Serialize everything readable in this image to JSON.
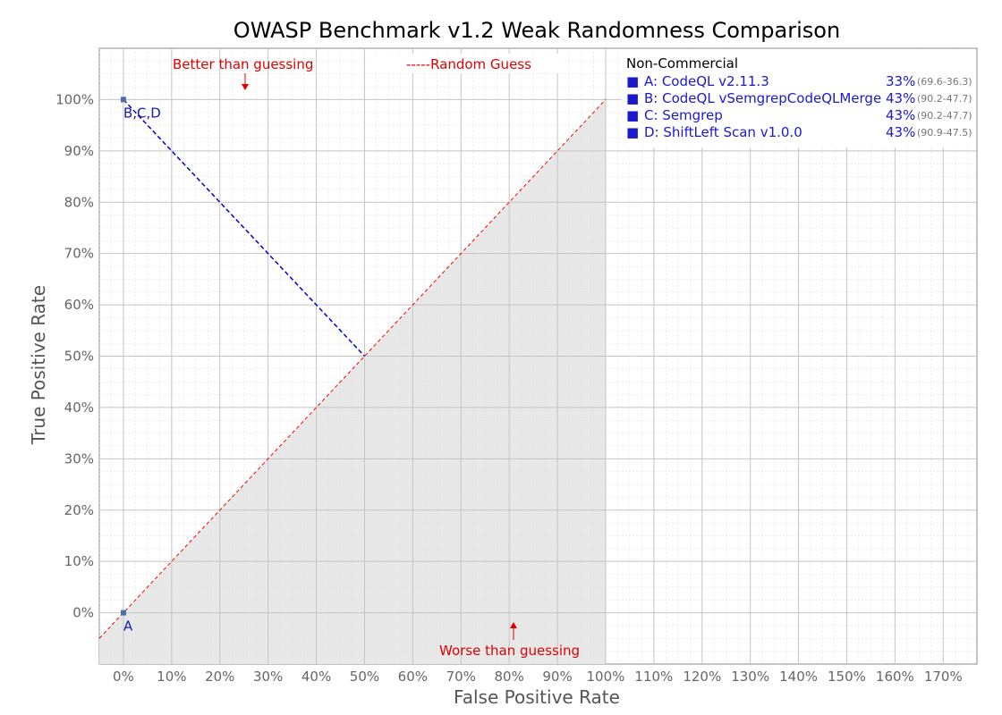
{
  "chart_data": {
    "type": "scatter",
    "title": "OWASP Benchmark v1.2 Weak Randomness Comparison",
    "xlabel": "False Positive Rate",
    "ylabel": "True Positive Rate",
    "xlim": [
      -5,
      177
    ],
    "ylim": [
      -10,
      110
    ],
    "x_ticks": [
      "0%",
      "10%",
      "20%",
      "30%",
      "40%",
      "50%",
      "60%",
      "70%",
      "80%",
      "90%",
      "100%",
      "110%",
      "120%",
      "130%",
      "140%",
      "150%",
      "160%",
      "170%"
    ],
    "x_tick_values": [
      0,
      10,
      20,
      30,
      40,
      50,
      60,
      70,
      80,
      90,
      100,
      110,
      120,
      130,
      140,
      150,
      160,
      170
    ],
    "y_ticks": [
      "0%",
      "10%",
      "20%",
      "30%",
      "40%",
      "50%",
      "60%",
      "70%",
      "80%",
      "90%",
      "100%"
    ],
    "y_tick_values": [
      0,
      10,
      20,
      30,
      40,
      50,
      60,
      70,
      80,
      90,
      100
    ],
    "grid": true,
    "points": [
      {
        "label": "A",
        "x": 0,
        "y": 0
      },
      {
        "label": "B,C,D",
        "x": 0,
        "y": 100
      }
    ],
    "random_guess_line": {
      "from": [
        -5,
        -5
      ],
      "to": [
        100,
        100
      ]
    },
    "projection_line": {
      "from": [
        0,
        100
      ],
      "to": [
        50,
        50
      ]
    },
    "annotations": {
      "better": "Better than guessing",
      "worse": "Worse than guessing",
      "random_guess": "-----Random Guess"
    },
    "legend": {
      "title": "Non-Commercial",
      "position": "top-right",
      "entries": [
        {
          "marker": "■",
          "name": "A: CodeQL v2.11.3",
          "score": "33%",
          "range": "(69.6-36.3)"
        },
        {
          "marker": "■",
          "name": "B: CodeQL vSemgrepCodeQLMerge",
          "score": "43%",
          "range": "(90.2-47.7)"
        },
        {
          "marker": "■",
          "name": "C: Semgrep",
          "score": "43%",
          "range": "(90.2-47.7)"
        },
        {
          "marker": "■",
          "name": "D: ShiftLeft Scan v1.0.0",
          "score": "43%",
          "range": "(90.9-47.5)"
        }
      ]
    },
    "colors": {
      "random_guess": "#ff0000",
      "projection": "#0000cc",
      "shade": "#e8e8e8",
      "point": "#4a6fa5",
      "legend_marker": "#0000ff"
    }
  }
}
